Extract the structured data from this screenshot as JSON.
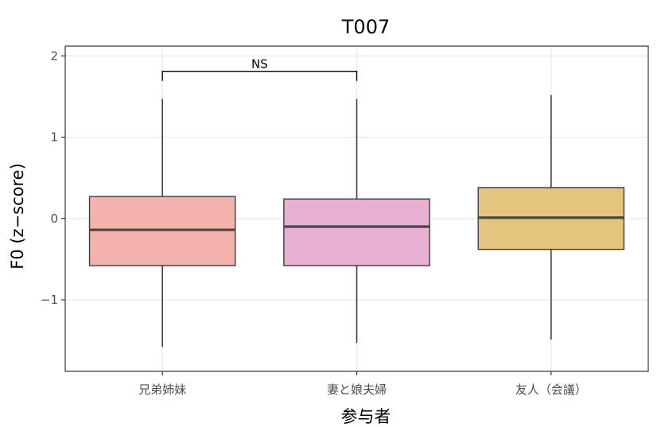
{
  "chart_data": {
    "type": "box",
    "title": "T007",
    "xlabel": "参与者",
    "ylabel": "F0 (z−score)",
    "categories": [
      "兄弟姉妹",
      "妻と娘夫婦",
      "友人（会議）"
    ],
    "ylim": [
      -1.88,
      2.12
    ],
    "yticks": [
      {
        "value": -1,
        "label": "−1"
      },
      {
        "value": 0,
        "label": "0"
      },
      {
        "value": 1,
        "label": "1"
      },
      {
        "value": 2,
        "label": "2"
      }
    ],
    "grid": true,
    "series": [
      {
        "category": "兄弟姉妹",
        "min": -1.58,
        "q1": -0.58,
        "median": -0.14,
        "q3": 0.27,
        "max": 1.47,
        "color": "#F4B2AC"
      },
      {
        "category": "妻と娘夫婦",
        "min": -1.53,
        "q1": -0.58,
        "median": -0.1,
        "q3": 0.24,
        "max": 1.47,
        "color": "#E9B0D4"
      },
      {
        "category": "友人（会議）",
        "min": -1.49,
        "q1": -0.38,
        "median": 0.01,
        "q3": 0.38,
        "max": 1.52,
        "color": "#E5C47D"
      }
    ],
    "annotations": [
      {
        "from": "兄弟姉妹",
        "to": "妻と娘夫婦",
        "label": "NS",
        "y": 1.81
      }
    ]
  }
}
